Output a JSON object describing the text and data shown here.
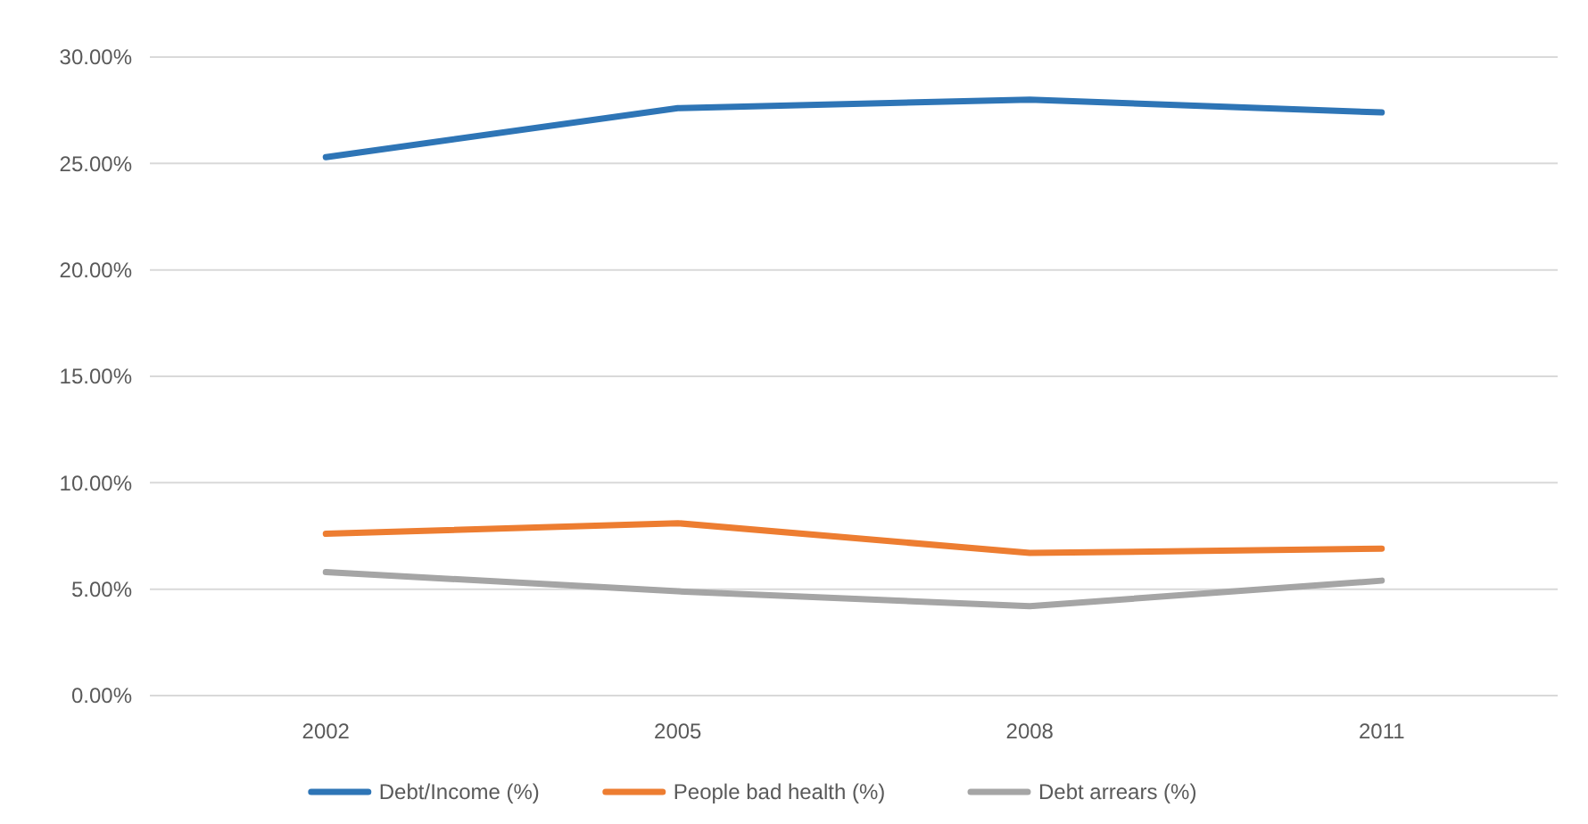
{
  "chart_data": {
    "type": "line",
    "categories": [
      "2002",
      "2005",
      "2008",
      "2011"
    ],
    "series": [
      {
        "name": "Debt/Income (%)",
        "color": "#2e75b6",
        "values": [
          25.3,
          27.6,
          28.0,
          27.4
        ]
      },
      {
        "name": "People bad health (%)",
        "color": "#ed7d31",
        "values": [
          7.6,
          8.1,
          6.7,
          6.9
        ]
      },
      {
        "name": "Debt arrears (%)",
        "color": "#a5a5a5",
        "values": [
          5.8,
          4.9,
          4.2,
          5.4
        ]
      }
    ],
    "ylim": [
      0,
      30
    ],
    "yticks": [
      {
        "value": 0,
        "label": "0.00%"
      },
      {
        "value": 5,
        "label": "5.00%"
      },
      {
        "value": 10,
        "label": "10.00%"
      },
      {
        "value": 15,
        "label": "15.00%"
      },
      {
        "value": 20,
        "label": "20.00%"
      },
      {
        "value": 25,
        "label": "25.00%"
      },
      {
        "value": 30,
        "label": "30.00%"
      }
    ],
    "grid": "y",
    "legend": "bottom",
    "marker": "none",
    "line_style": "solid"
  }
}
